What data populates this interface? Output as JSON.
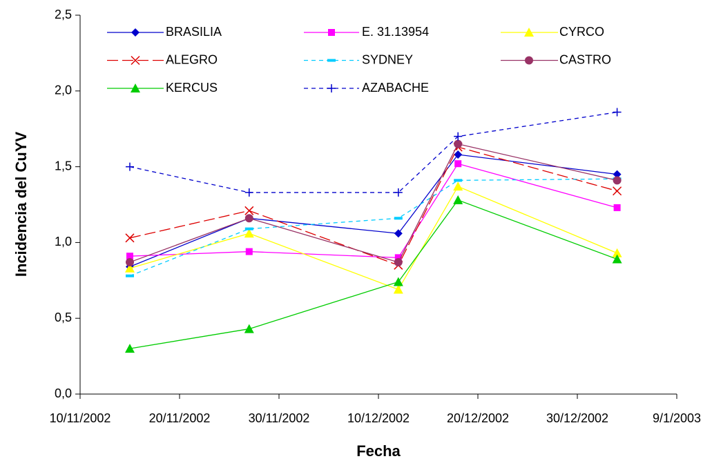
{
  "chart_data": {
    "type": "line",
    "x_label": "Fecha",
    "y_label": "Incidencia del CuYV",
    "x": [
      "15/11/2002",
      "27/11/2002",
      "12/12/2002",
      "18/12/2002",
      "3/1/2003"
    ],
    "xlim": [
      "10/11/2002",
      "9/1/2003"
    ],
    "xticks": [
      "10/11/2002",
      "20/11/2002",
      "30/11/2002",
      "10/12/2002",
      "20/12/2002",
      "30/12/2002",
      "9/1/2003"
    ],
    "ylim": [
      0,
      2.5
    ],
    "yticks": [
      {
        "value": 0,
        "label": "0,0"
      },
      {
        "value": 0.5,
        "label": "0,5"
      },
      {
        "value": 1,
        "label": "1,0"
      },
      {
        "value": 1.5,
        "label": "1,5"
      },
      {
        "value": 2,
        "label": "2,0"
      },
      {
        "value": 2.5,
        "label": "2,5"
      }
    ],
    "grid": false,
    "series": [
      {
        "name": "BRASILIA",
        "color": "#0000cc",
        "marker": "diamond",
        "dash": "solid",
        "values": [
          0.84,
          1.16,
          1.06,
          1.58,
          1.45
        ]
      },
      {
        "name": "E. 31.13954",
        "color": "#ff00ff",
        "marker": "square",
        "dash": "solid",
        "values": [
          0.91,
          0.94,
          0.9,
          1.52,
          1.23
        ]
      },
      {
        "name": "CYRCO",
        "color": "#ffff00",
        "marker": "triangle",
        "dash": "solid",
        "values": [
          0.83,
          1.06,
          0.69,
          1.37,
          0.93
        ]
      },
      {
        "name": "ALEGRO",
        "color": "#dd0000",
        "marker": "x",
        "dash": "long",
        "values": [
          1.03,
          1.21,
          0.85,
          1.63,
          1.34
        ]
      },
      {
        "name": "SYDNEY",
        "color": "#00ccff",
        "marker": "dash",
        "dash": "short",
        "values": [
          0.78,
          1.09,
          1.16,
          1.41,
          1.42
        ]
      },
      {
        "name": "CASTRO",
        "color": "#993366",
        "marker": "circle",
        "dash": "solid",
        "values": [
          0.87,
          1.16,
          0.87,
          1.65,
          1.41
        ]
      },
      {
        "name": "KERCUS",
        "color": "#00cc00",
        "marker": "triangle",
        "dash": "solid",
        "values": [
          0.3,
          0.43,
          0.74,
          1.28,
          0.89
        ]
      },
      {
        "name": "AZABACHE",
        "color": "#0000cc",
        "marker": "plus",
        "dash": "short",
        "values": [
          1.5,
          1.33,
          1.33,
          1.7,
          1.86
        ]
      }
    ]
  }
}
